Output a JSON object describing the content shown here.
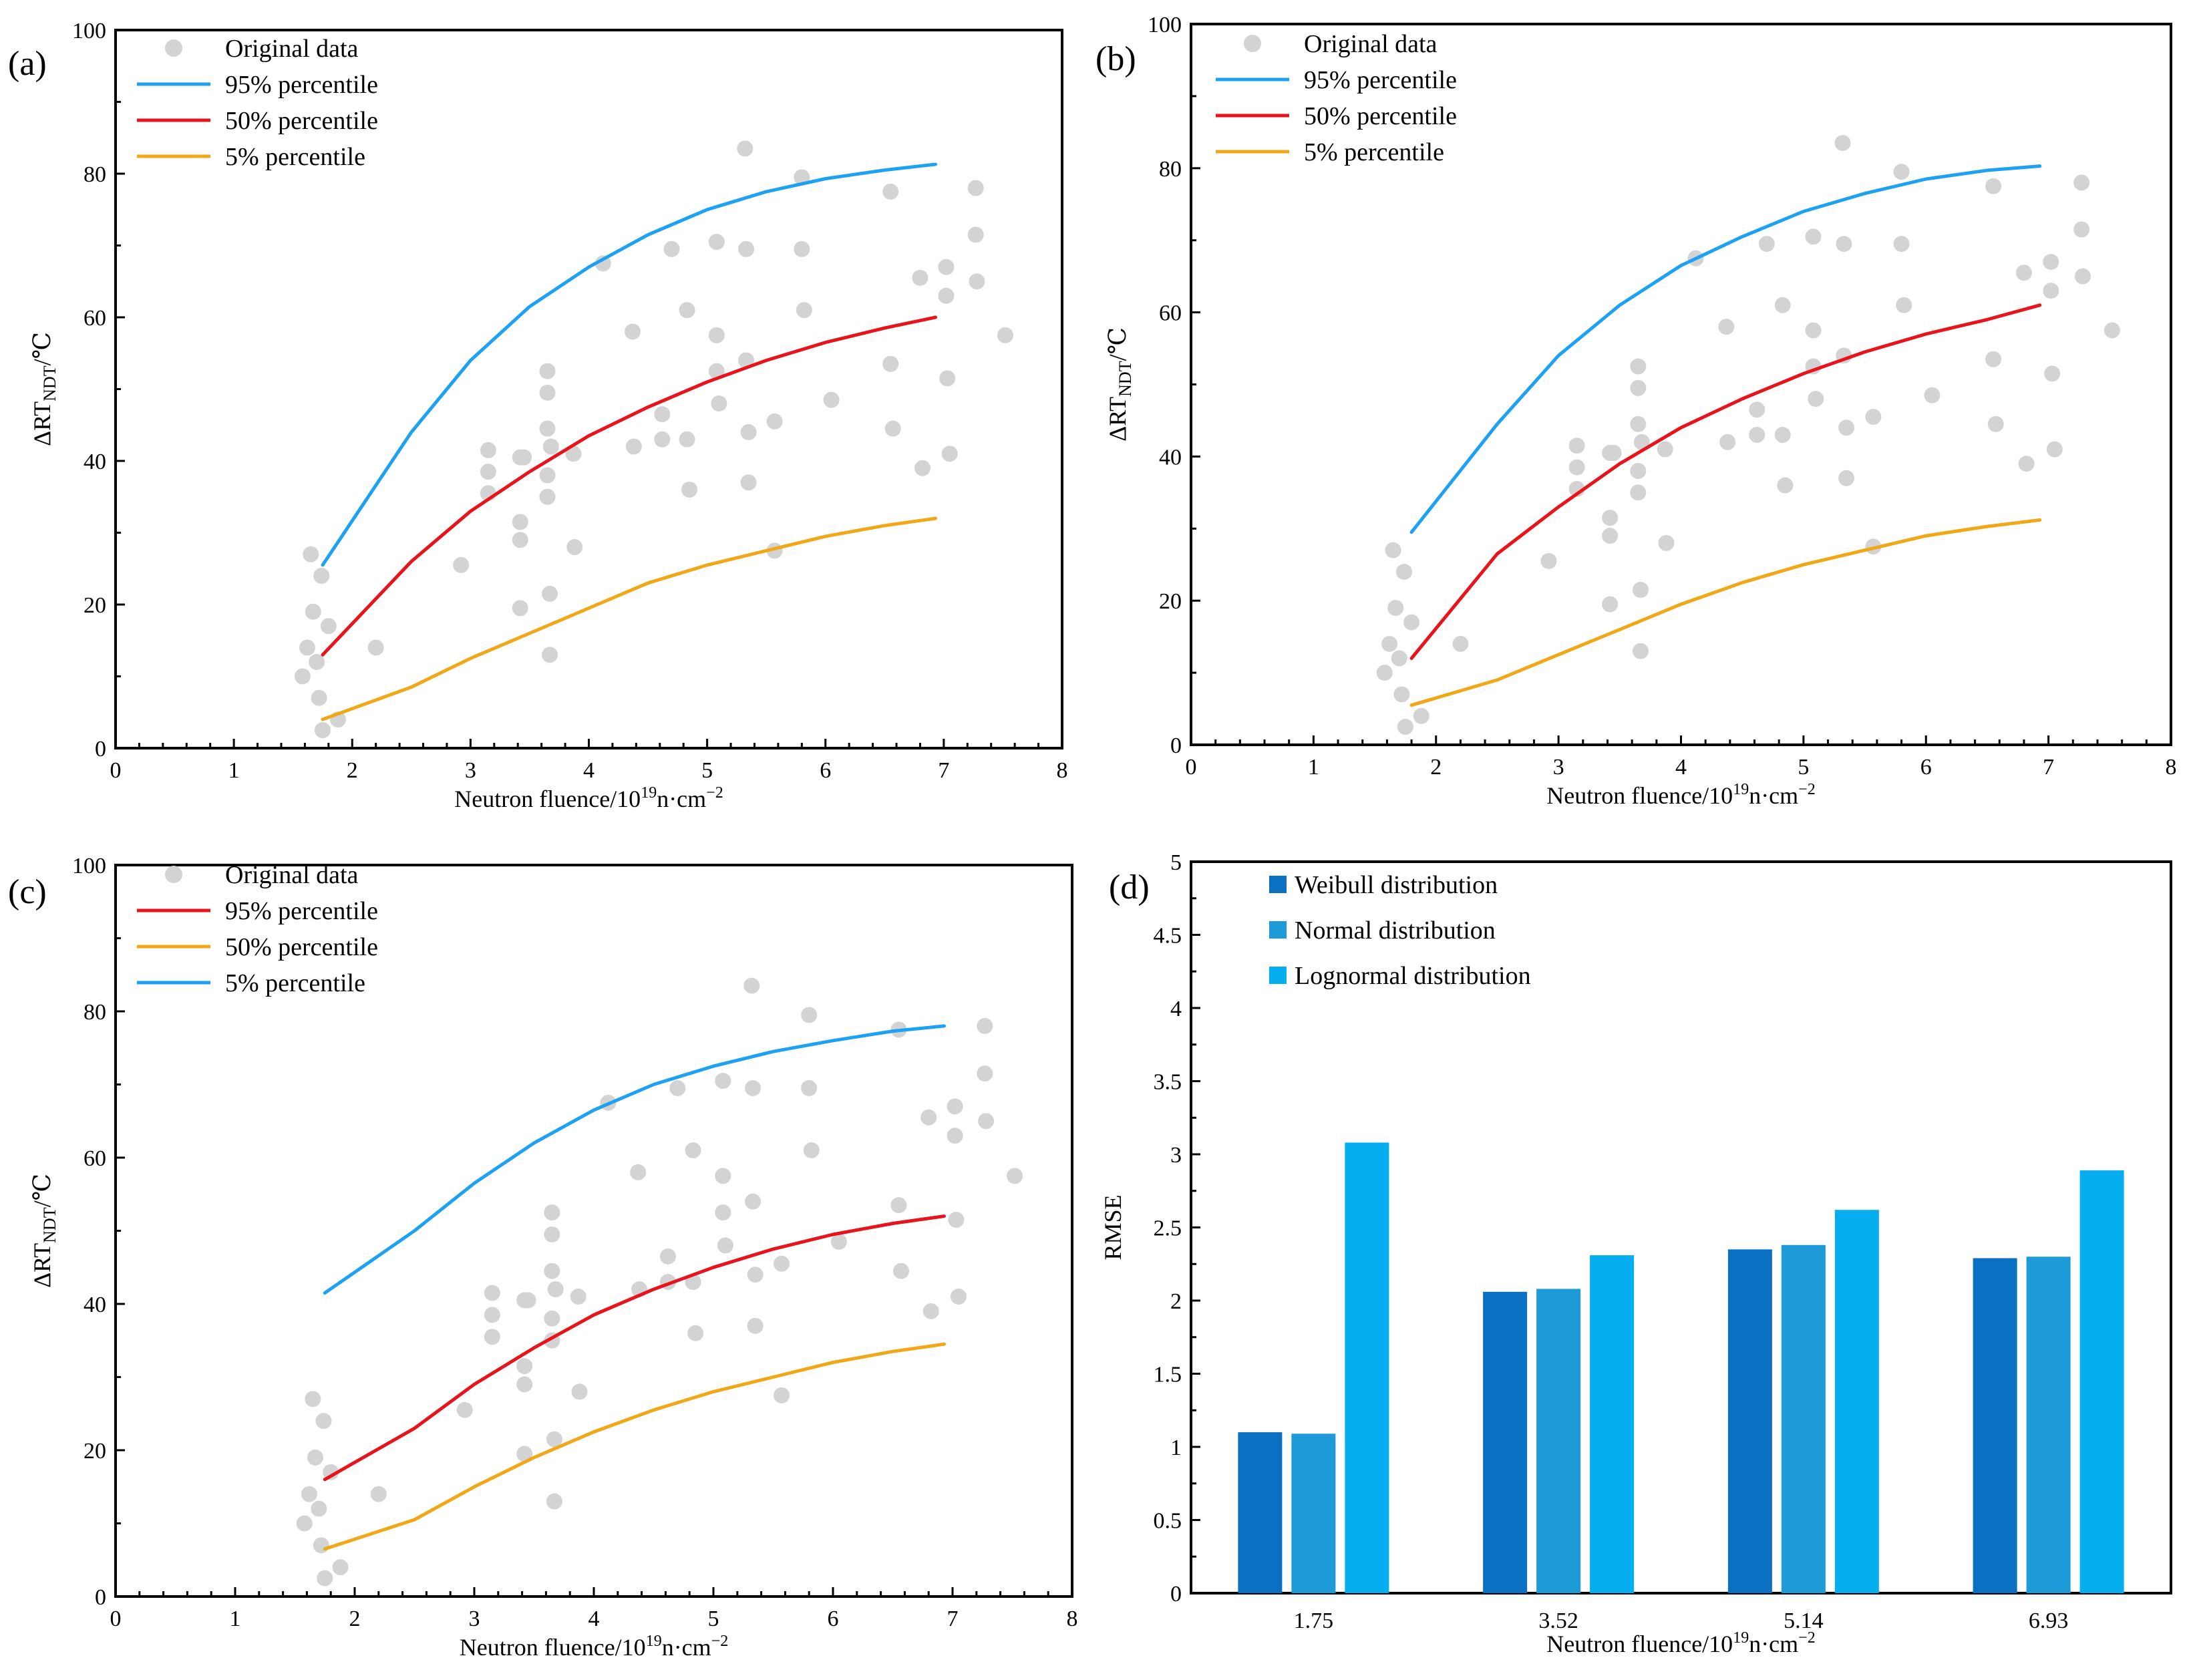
{
  "chart_data": [
    {
      "panel": "(a)",
      "type": "scatter+line",
      "xlabel": "Neutron fluence/10",
      "xlabel_sup": "19",
      "xlabel_tail": "n·cm",
      "xlabel_tail_sup": "−2",
      "ylabel": "ΔRT",
      "ylabel_sub": "NDT",
      "ylabel_tail": "/℃",
      "xlim": [
        0,
        8
      ],
      "ylim": [
        0,
        100
      ],
      "xticks": [
        "0",
        "1",
        "2",
        "3",
        "4",
        "5",
        "6",
        "7",
        "8"
      ],
      "yticks": [
        "0",
        "20",
        "40",
        "60",
        "80",
        "100"
      ],
      "legend": [
        {
          "label": "Original data",
          "kind": "marker",
          "color": "#d3d3d3"
        },
        {
          "label": "95% percentile",
          "kind": "line",
          "color": "#1da1f2"
        },
        {
          "label": "50% percentile",
          "kind": "line",
          "color": "#e8141b"
        },
        {
          "label": "5%   percentile",
          "kind": "line",
          "color": "#f0a818"
        }
      ],
      "curves": [
        {
          "name": "95% percentile",
          "color": "#1da1f2",
          "x": [
            1.75,
            2.5,
            3.0,
            3.5,
            4.0,
            4.5,
            5.0,
            5.5,
            6.0,
            6.5,
            6.93
          ],
          "y": [
            25.5,
            44,
            54,
            61.5,
            67,
            71.5,
            75,
            77.5,
            79.3,
            80.5,
            81.3
          ]
        },
        {
          "name": "50% percentile",
          "color": "#e8141b",
          "x": [
            1.75,
            2.5,
            3.0,
            3.5,
            4.0,
            4.5,
            5.0,
            5.5,
            6.0,
            6.5,
            6.93
          ],
          "y": [
            13,
            26,
            33,
            38.5,
            43.5,
            47.5,
            51,
            54,
            56.5,
            58.5,
            60
          ]
        },
        {
          "name": "5% percentile",
          "color": "#f0a818",
          "x": [
            1.75,
            2.5,
            3.0,
            3.5,
            4.0,
            4.5,
            5.0,
            5.5,
            6.0,
            6.5,
            6.93
          ],
          "y": [
            4,
            8.5,
            12.5,
            16,
            19.5,
            23,
            25.5,
            27.5,
            29.5,
            31,
            32
          ]
        }
      ]
    },
    {
      "panel": "(b)",
      "type": "scatter+line",
      "xlabel": "Neutron fluence/10",
      "xlabel_sup": "19",
      "xlabel_tail": "n·cm",
      "xlabel_tail_sup": "−2",
      "ylabel": "ΔRT",
      "ylabel_sub": "NDT",
      "ylabel_tail": "/℃",
      "xlim": [
        0,
        8
      ],
      "ylim": [
        0,
        100
      ],
      "xticks": [
        "0",
        "1",
        "2",
        "3",
        "4",
        "5",
        "6",
        "7",
        "8"
      ],
      "yticks": [
        "0",
        "20",
        "40",
        "60",
        "80",
        "100"
      ],
      "legend": [
        {
          "label": "Original data",
          "kind": "marker",
          "color": "#d3d3d3"
        },
        {
          "label": "95% percentile",
          "kind": "line",
          "color": "#1da1f2"
        },
        {
          "label": "50% percentile",
          "kind": "line",
          "color": "#e8141b"
        },
        {
          "label": "5%   percentile",
          "kind": "line",
          "color": "#f0a818"
        }
      ],
      "curves": [
        {
          "name": "95% percentile",
          "color": "#1da1f2",
          "x": [
            1.8,
            2.5,
            3.0,
            3.5,
            4.0,
            4.5,
            5.0,
            5.5,
            6.0,
            6.5,
            6.93
          ],
          "y": [
            29.5,
            44.5,
            54,
            61,
            66.5,
            70.5,
            74,
            76.5,
            78.5,
            79.7,
            80.3
          ]
        },
        {
          "name": "50% percentile",
          "color": "#e8141b",
          "x": [
            1.8,
            2.5,
            3.0,
            3.5,
            4.0,
            4.5,
            5.0,
            5.5,
            6.0,
            6.5,
            6.93
          ],
          "y": [
            12,
            26.5,
            33,
            39,
            44,
            48,
            51.5,
            54.5,
            57,
            59,
            61
          ]
        },
        {
          "name": "5% percentile",
          "color": "#f0a818",
          "x": [
            1.8,
            2.5,
            3.0,
            3.5,
            4.0,
            4.5,
            5.0,
            5.5,
            6.0,
            6.5,
            6.93
          ],
          "y": [
            5.5,
            9,
            12.5,
            16,
            19.5,
            22.5,
            25,
            27,
            29,
            30.3,
            31.2
          ]
        }
      ]
    },
    {
      "panel": "(c)",
      "type": "scatter+line",
      "xlabel": "Neutron fluence/10",
      "xlabel_sup": "19",
      "xlabel_tail": "n·cm",
      "xlabel_tail_sup": "−2",
      "ylabel": "ΔRT",
      "ylabel_sub": "NDT",
      "ylabel_tail": "/℃",
      "xlim": [
        0,
        8
      ],
      "ylim": [
        0,
        100
      ],
      "xticks": [
        "0",
        "1",
        "2",
        "3",
        "4",
        "5",
        "6",
        "7",
        "8"
      ],
      "yticks": [
        "0",
        "20",
        "40",
        "60",
        "80",
        "100"
      ],
      "legend": [
        {
          "label": "Original data",
          "kind": "marker",
          "color": "#d3d3d3"
        },
        {
          "label": "95% percentile",
          "kind": "line",
          "color": "#e8141b"
        },
        {
          "label": "50% percentile",
          "kind": "line",
          "color": "#f0a818"
        },
        {
          "label": "5%   percentile",
          "kind": "line",
          "color": "#1da1f2"
        }
      ],
      "curves": [
        {
          "name": "5% percentile",
          "color": "#1da1f2",
          "x": [
            1.75,
            2.5,
            3.0,
            3.5,
            4.0,
            4.5,
            5.0,
            5.5,
            6.0,
            6.5,
            6.93
          ],
          "y": [
            41.5,
            50,
            56.5,
            62,
            66.5,
            70,
            72.5,
            74.5,
            76,
            77.3,
            78
          ]
        },
        {
          "name": "95% percentile",
          "color": "#e8141b",
          "x": [
            1.75,
            2.5,
            3.0,
            3.5,
            4.0,
            4.5,
            5.0,
            5.5,
            6.0,
            6.5,
            6.93
          ],
          "y": [
            16,
            23,
            29,
            34,
            38.5,
            42,
            45,
            47.5,
            49.5,
            51,
            52
          ]
        },
        {
          "name": "50% percentile",
          "color": "#f0a818",
          "x": [
            1.75,
            2.5,
            3.0,
            3.5,
            4.0,
            4.5,
            5.0,
            5.5,
            6.0,
            6.5,
            6.93
          ],
          "y": [
            6.5,
            10.5,
            15,
            19,
            22.5,
            25.5,
            28,
            30,
            32,
            33.5,
            34.5
          ]
        }
      ]
    },
    {
      "panel": "(d)",
      "type": "bar",
      "xlabel": "Neutron fluence/10",
      "xlabel_sup": "19",
      "xlabel_tail": "n·cm",
      "xlabel_tail_sup": "−2",
      "ylabel": "RMSE",
      "ylim": [
        0,
        5
      ],
      "yticks": [
        "0",
        "0.5",
        "1",
        "1.5",
        "2",
        "2.5",
        "3",
        "3.5",
        "4",
        "4.5",
        "5"
      ],
      "categories": [
        "1.75",
        "3.52",
        "5.14",
        "6.93"
      ],
      "series": [
        {
          "name": "Weibull distribution",
          "color": "#0a70c2",
          "values": [
            1.1,
            2.06,
            2.35,
            2.29
          ]
        },
        {
          "name": "Normal distribution",
          "color": "#1e9ad8",
          "values": [
            1.09,
            2.08,
            2.38,
            2.3
          ]
        },
        {
          "name": "Lognormal distribution",
          "color": "#06aef0",
          "values": [
            3.08,
            2.31,
            2.62,
            2.89
          ]
        }
      ]
    }
  ],
  "scatter_points": {
    "x": [
      1.58,
      1.62,
      1.65,
      1.67,
      1.7,
      1.72,
      1.74,
      1.75,
      1.8,
      1.88,
      2.2,
      2.92,
      3.15,
      3.15,
      3.15,
      3.42,
      3.42,
      3.42,
      3.42,
      3.45,
      3.65,
      3.65,
      3.65,
      3.65,
      3.65,
      3.67,
      3.67,
      3.68,
      3.87,
      3.88,
      4.12,
      4.37,
      4.38,
      4.62,
      4.62,
      4.7,
      4.83,
      4.83,
      4.85,
      5.08,
      5.08,
      5.08,
      5.1,
      5.32,
      5.33,
      5.33,
      5.35,
      5.35,
      5.57,
      5.57,
      5.8,
      5.8,
      5.82,
      6.05,
      6.55,
      6.55,
      6.57,
      6.8,
      6.82,
      7.02,
      7.02,
      7.03,
      7.05,
      7.27,
      7.27,
      7.28,
      7.52
    ],
    "y": [
      10,
      14,
      27,
      19,
      12,
      7,
      24,
      2.5,
      17,
      4,
      14,
      25.5,
      41.5,
      38.5,
      35.5,
      40.5,
      31.5,
      29,
      19.5,
      40.5,
      52.5,
      49.5,
      44.5,
      38,
      35,
      21.5,
      13,
      42,
      41,
      28,
      67.5,
      58,
      42,
      46.5,
      43,
      69.5,
      61,
      43,
      36,
      70.5,
      57.5,
      52.5,
      48,
      83.5,
      69.5,
      54,
      44,
      37,
      45.5,
      27.5,
      79.5,
      69.5,
      61,
      48.5,
      77.5,
      53.5,
      44.5,
      65.5,
      39,
      67,
      63,
      51.5,
      41,
      78,
      71.5,
      65,
      57.5
    ]
  }
}
